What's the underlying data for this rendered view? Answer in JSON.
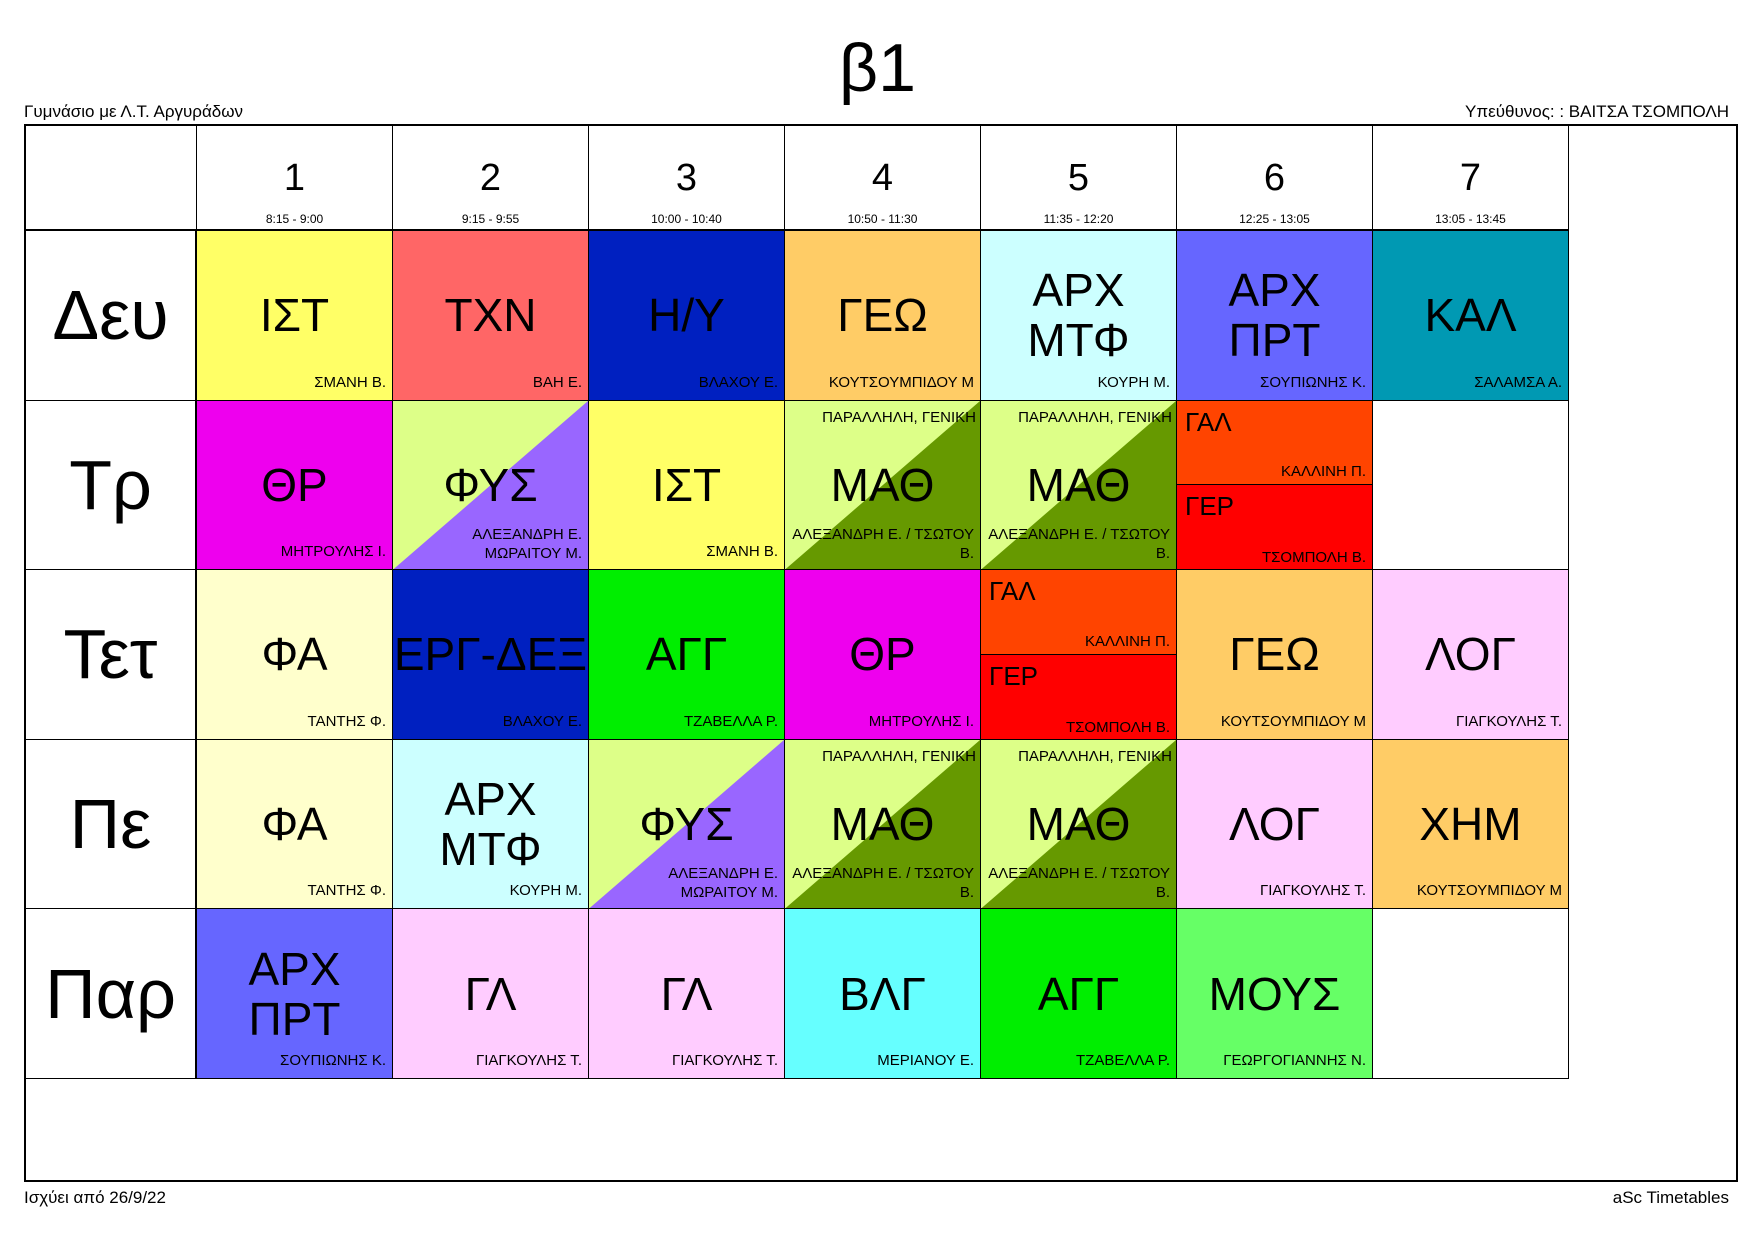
{
  "title": "β1",
  "school": "Γυμνάσιο με Λ.Τ. Αργυράδων",
  "responsible": "Υπεύθυνος: : ΒΑΙΤΣΑ ΤΣΟΜΠΟΛΗ",
  "valid_from": "Ισχύει από 26/9/22",
  "credit": "aSc Timetables",
  "periods": [
    {
      "num": "1",
      "time": "8:15 - 9:00"
    },
    {
      "num": "2",
      "time": "9:15 - 9:55"
    },
    {
      "num": "3",
      "time": "10:00 - 10:40"
    },
    {
      "num": "4",
      "time": "10:50 - 11:30"
    },
    {
      "num": "5",
      "time": "11:35 - 12:20"
    },
    {
      "num": "6",
      "time": "12:25 - 13:05"
    },
    {
      "num": "7",
      "time": "13:05 - 13:45"
    }
  ],
  "days": [
    "Δευ",
    "Τρ",
    "Τετ",
    "Πε",
    "Παρ"
  ],
  "cells": [
    [
      {
        "subject": "ΙΣΤ",
        "teacher": "ΣΜΑΝΗ Β.",
        "color": "#ffff66"
      },
      {
        "subject": "ΤΧΝ",
        "teacher": "ΒΑΗ Ε.",
        "color": "#ff6666"
      },
      {
        "subject": "Η/Υ",
        "teacher": "ΒΛΑΧΟΥ Ε.",
        "color": "#0020c0"
      },
      {
        "subject": "ΓΕΩ",
        "teacher": "ΚΟΥΤΣΟΥΜΠΙΔΟΥ Μ",
        "color": "#ffcc66"
      },
      {
        "subject": "ΑΡΧ ΜΤΦ",
        "teacher": "ΚΟΥΡΗ Μ.",
        "color": "#ccffff"
      },
      {
        "subject": "ΑΡΧ ΠΡΤ",
        "teacher": "ΣΟΥΠΙΩΝΗΣ Κ.",
        "color": "#6666ff"
      },
      {
        "subject": "ΚΑΛ",
        "teacher": "ΣΑΛΑΜΣΑ Α.",
        "color": "#0099b3"
      }
    ],
    [
      {
        "subject": "ΘΡ",
        "teacher": "ΜΗΤΡΟΥΛΗΣ Ι.",
        "color": "#ee00ee"
      },
      {
        "subject": "ΦΥΣ",
        "teacher": "ΑΛΕΞΑΝΔΡΗ Ε. ΜΩΡΑΙΤΟΥ Μ.",
        "color": "#ddff88",
        "color2": "#9966ff"
      },
      {
        "subject": "ΙΣΤ",
        "teacher": "ΣΜΑΝΗ Β.",
        "color": "#ffff66"
      },
      {
        "subject": "ΜΑΘ",
        "teacher": "ΑΛΕΞΑΝΔΡΗ Ε. / ΤΣΩΤΟΥ Β.",
        "group": "ΠΑΡΑΛΛΗΛΗ, ΓΕΝΙΚΗ",
        "color": "#ddff88",
        "color2": "#669900"
      },
      {
        "subject": "ΜΑΘ",
        "teacher": "ΑΛΕΞΑΝΔΡΗ Ε. / ΤΣΩΤΟΥ Β.",
        "group": "ΠΑΡΑΛΛΗΛΗ, ΓΕΝΙΚΗ",
        "color": "#ddff88",
        "color2": "#669900"
      },
      {
        "split": [
          {
            "subject": "ΓΑΛ",
            "teacher": "ΚΑΛΛΙΝΗ Π.",
            "color": "#ff4400"
          },
          {
            "subject": "ΓΕΡ",
            "teacher": "ΤΣΟΜΠΟΛΗ Β.",
            "color": "#ff0000"
          }
        ]
      },
      {
        "subject": "",
        "teacher": "",
        "color": "#ffffff"
      }
    ],
    [
      {
        "subject": "ΦΑ",
        "teacher": "ΤΑΝΤΗΣ Φ.",
        "color": "#ffffcc"
      },
      {
        "subject": "ΕΡΓ-ΔΕΞ",
        "teacher": "ΒΛΑΧΟΥ Ε.",
        "color": "#0020c0"
      },
      {
        "subject": "ΑΓΓ",
        "teacher": "ΤΖΑΒΕΛΛΑ Ρ.",
        "color": "#00ee00"
      },
      {
        "subject": "ΘΡ",
        "teacher": "ΜΗΤΡΟΥΛΗΣ Ι.",
        "color": "#ee00ee"
      },
      {
        "split": [
          {
            "subject": "ΓΑΛ",
            "teacher": "ΚΑΛΛΙΝΗ Π.",
            "color": "#ff4400"
          },
          {
            "subject": "ΓΕΡ",
            "teacher": "ΤΣΟΜΠΟΛΗ Β.",
            "color": "#ff0000"
          }
        ]
      },
      {
        "subject": "ΓΕΩ",
        "teacher": "ΚΟΥΤΣΟΥΜΠΙΔΟΥ Μ",
        "color": "#ffcc66"
      },
      {
        "subject": "ΛΟΓ",
        "teacher": "ΓΙΑΓΚΟΥΛΗΣ Τ.",
        "color": "#ffccff"
      }
    ],
    [
      {
        "subject": "ΦΑ",
        "teacher": "ΤΑΝΤΗΣ Φ.",
        "color": "#ffffcc"
      },
      {
        "subject": "ΑΡΧ ΜΤΦ",
        "teacher": "ΚΟΥΡΗ Μ.",
        "color": "#ccffff"
      },
      {
        "subject": "ΦΥΣ",
        "teacher": "ΑΛΕΞΑΝΔΡΗ Ε. ΜΩΡΑΙΤΟΥ Μ.",
        "color": "#ddff88",
        "color2": "#9966ff"
      },
      {
        "subject": "ΜΑΘ",
        "teacher": "ΑΛΕΞΑΝΔΡΗ Ε. / ΤΣΩΤΟΥ Β.",
        "group": "ΠΑΡΑΛΛΗΛΗ, ΓΕΝΙΚΗ",
        "color": "#ddff88",
        "color2": "#669900"
      },
      {
        "subject": "ΜΑΘ",
        "teacher": "ΑΛΕΞΑΝΔΡΗ Ε. / ΤΣΩΤΟΥ Β.",
        "group": "ΠΑΡΑΛΛΗΛΗ, ΓΕΝΙΚΗ",
        "color": "#ddff88",
        "color2": "#669900"
      },
      {
        "subject": "ΛΟΓ",
        "teacher": "ΓΙΑΓΚΟΥΛΗΣ Τ.",
        "color": "#ffccff"
      },
      {
        "subject": "ΧΗΜ",
        "teacher": "ΚΟΥΤΣΟΥΜΠΙΔΟΥ Μ",
        "color": "#ffcc66"
      }
    ],
    [
      {
        "subject": "ΑΡΧ ΠΡΤ",
        "teacher": "ΣΟΥΠΙΩΝΗΣ Κ.",
        "color": "#6666ff"
      },
      {
        "subject": "ΓΛ",
        "teacher": "ΓΙΑΓΚΟΥΛΗΣ Τ.",
        "color": "#ffccff"
      },
      {
        "subject": "ΓΛ",
        "teacher": "ΓΙΑΓΚΟΥΛΗΣ Τ.",
        "color": "#ffccff"
      },
      {
        "subject": "ΒΛΓ",
        "teacher": "ΜΕΡΙΑΝΟΥ Ε.",
        "color": "#66ffff"
      },
      {
        "subject": "ΑΓΓ",
        "teacher": "ΤΖΑΒΕΛΛΑ Ρ.",
        "color": "#00ee00"
      },
      {
        "subject": "ΜΟΥΣ",
        "teacher": "ΓΕΩΡΓΟΓΙΑΝΝΗΣ Ν.",
        "color": "#66ff66"
      },
      {
        "subject": "",
        "teacher": "",
        "color": "#ffffff"
      }
    ]
  ]
}
